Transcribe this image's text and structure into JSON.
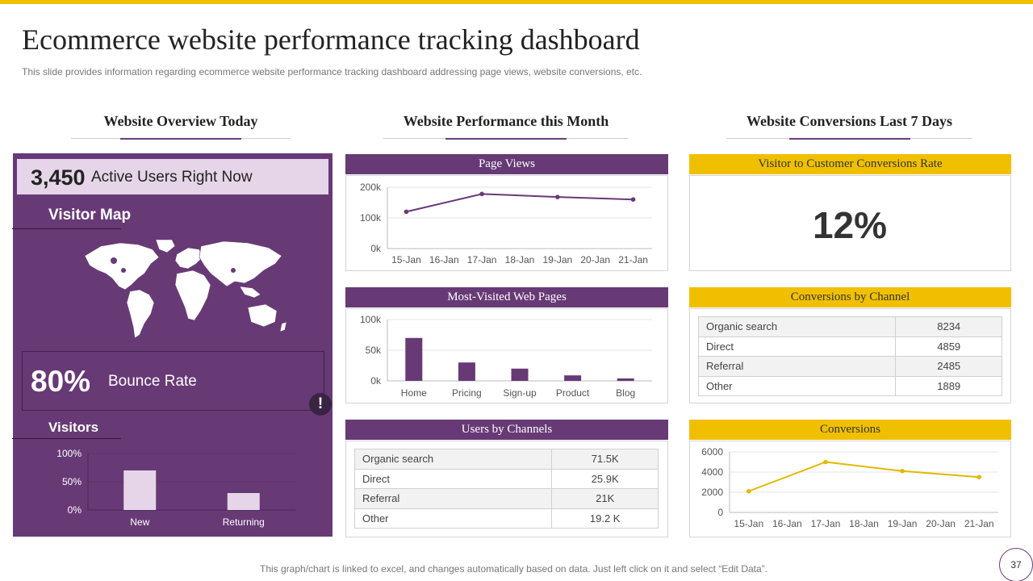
{
  "title": "Ecommerce website performance tracking dashboard",
  "subtitle": "This slide provides information regarding ecommerce website performance tracking dashboard addressing page views, website conversions, etc.",
  "sections": {
    "overview": "Website Overview Today",
    "performance": "Website Performance this Month",
    "conversions": "Website Conversions Last 7 Days"
  },
  "overview": {
    "active_users_value": "3,450",
    "active_users_label": "Active Users Right Now",
    "visitor_map_title": "Visitor Map",
    "bounce_value": "80%",
    "bounce_label": "Bounce Rate",
    "alert_glyph": "!",
    "visitors_title": "Visitors"
  },
  "panels": {
    "page_views": "Page Views",
    "most_visited": "Most-Visited Web Pages",
    "users_by_channels": "Users by Channels",
    "conversion_rate": "Visitor to Customer Conversions Rate",
    "conversions_by_channel": "Conversions by Channel",
    "conversions": "Conversions"
  },
  "conversion_rate_value": "12%",
  "users_by_channels_table": [
    {
      "channel": "Organic search",
      "value": "71.5K"
    },
    {
      "channel": "Direct",
      "value": "25.9K"
    },
    {
      "channel": "Referral",
      "value": "21K"
    },
    {
      "channel": "Other",
      "value": "19.2 K"
    }
  ],
  "conversions_by_channel_table": [
    {
      "channel": "Organic search",
      "value": "8234"
    },
    {
      "channel": "Direct",
      "value": "4859"
    },
    {
      "channel": "Referral",
      "value": "2485"
    },
    {
      "channel": "Other",
      "value": "1889"
    }
  ],
  "colors": {
    "purple": "#673a76",
    "yellow": "#f0c000",
    "light_purple": "#e6d5e8"
  },
  "footer": "This graph/chart is linked to excel, and changes automatically based on data. Just left click on it and select “Edit Data”.",
  "page_number": "37",
  "chart_data": [
    {
      "id": "page_views",
      "type": "line",
      "title": "Page Views",
      "x": [
        "15-Jan",
        "16-Jan",
        "17-Jan",
        "18-Jan",
        "19-Jan",
        "20-Jan",
        "21-Jan"
      ],
      "points": [
        {
          "x": "15-Jan",
          "y": 120000
        },
        {
          "x": "17-Jan",
          "y": 178000
        },
        {
          "x": "19-Jan",
          "y": 168000
        },
        {
          "x": "21-Jan",
          "y": 160000
        }
      ],
      "yticks": [
        "0k",
        "100k",
        "200k"
      ],
      "ylim": [
        0,
        200000
      ]
    },
    {
      "id": "most_visited",
      "type": "bar",
      "title": "Most-Visited Web Pages",
      "categories": [
        "Home",
        "Pricing",
        "Sign-up",
        "Product",
        "Blog"
      ],
      "values": [
        70000,
        30000,
        20000,
        9000,
        4000
      ],
      "yticks": [
        "0k",
        "50k",
        "100k"
      ],
      "ylim": [
        0,
        100000
      ]
    },
    {
      "id": "visitors",
      "type": "bar",
      "title": "Visitors",
      "categories": [
        "New",
        "Returning"
      ],
      "values": [
        70,
        30
      ],
      "yticks": [
        "0%",
        "50%",
        "100%"
      ],
      "ylim": [
        0,
        100
      ]
    },
    {
      "id": "conversions",
      "type": "line",
      "title": "Conversions",
      "x": [
        "15-Jan",
        "16-Jan",
        "17-Jan",
        "18-Jan",
        "19-Jan",
        "20-Jan",
        "21-Jan"
      ],
      "points": [
        {
          "x": "15-Jan",
          "y": 2100
        },
        {
          "x": "17-Jan",
          "y": 5000
        },
        {
          "x": "19-Jan",
          "y": 4100
        },
        {
          "x": "21-Jan",
          "y": 3500
        }
      ],
      "yticks": [
        "0",
        "2000",
        "4000",
        "6000"
      ],
      "ylim": [
        0,
        6000
      ]
    }
  ]
}
